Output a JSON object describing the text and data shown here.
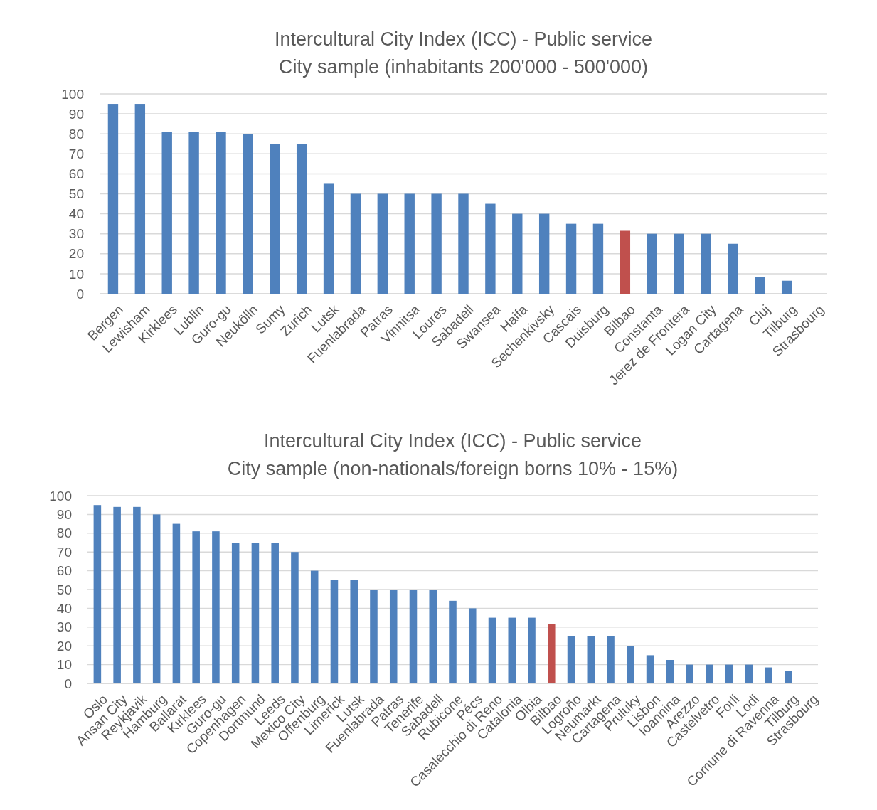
{
  "chart_data": [
    {
      "type": "bar",
      "title": "Intercultural City Index (ICC) - Public service",
      "subtitle": "City sample (inhabitants 200'000 - 500'000)",
      "categories": [
        "Bergen",
        "Lewisham",
        "Kirklees",
        "Lublin",
        "Guro-gu",
        "Neukölln",
        "Sumy",
        "Zurich",
        "Lutsk",
        "Fuenlabrada",
        "Patras",
        "Vinnitsa",
        "Loures",
        "Sabadell",
        "Swansea",
        "Haifa",
        "Sechenkivsky",
        "Cascais",
        "Duisburg",
        "Bilbao",
        "Constanta",
        "Jerez de Frontera",
        "Logan City",
        "Cartagena",
        "Cluj",
        "Tilburg",
        "Strasbourg"
      ],
      "values": [
        95,
        95,
        81,
        81,
        81,
        80,
        75,
        75,
        55,
        50,
        50,
        50,
        50,
        50,
        45,
        40,
        40,
        35,
        35,
        31.5,
        30,
        30,
        30,
        25,
        8.5,
        6.5,
        0
      ],
      "colors": [
        "#4f81bd",
        "#4f81bd",
        "#4f81bd",
        "#4f81bd",
        "#4f81bd",
        "#4f81bd",
        "#4f81bd",
        "#4f81bd",
        "#4f81bd",
        "#4f81bd",
        "#4f81bd",
        "#4f81bd",
        "#4f81bd",
        "#4f81bd",
        "#4f81bd",
        "#4f81bd",
        "#4f81bd",
        "#4f81bd",
        "#4f81bd",
        "#c0504d",
        "#4f81bd",
        "#4f81bd",
        "#4f81bd",
        "#4f81bd",
        "#4f81bd",
        "#4f81bd",
        "#4f81bd"
      ],
      "ylim": [
        0,
        100
      ],
      "yticks": [
        0,
        10,
        20,
        30,
        40,
        50,
        60,
        70,
        80,
        90,
        100
      ],
      "grid": "y"
    },
    {
      "type": "bar",
      "title": "Intercultural City Index (ICC) - Public service",
      "subtitle": "City sample (non-nationals/foreign borns 10% - 15%)",
      "categories": [
        "Oslo",
        "Ansan City",
        "Reykjavik",
        "Hamburg",
        "Ballarat",
        "Kirklees",
        "Guro-gu",
        "Copenhagen",
        "Dortmund",
        "Leeds",
        "Mexico City",
        "Offenburg",
        "Limerick",
        "Lutsk",
        "Fuenlabrada",
        "Patras",
        "Tenerife",
        "Sabadell",
        "Rubicone",
        "Pécs",
        "Casalecchio di Reno",
        "Catalonia",
        "Olbia",
        "Bilbao",
        "Logroño",
        "Neumarkt",
        "Cartagena",
        "Pruluky",
        "Lisbon",
        "Ioannina",
        "Arezzo",
        "Castelvetro",
        "Forli",
        "Lodi",
        "Comune di Ravenna",
        "Tilburg",
        "Strasbourg"
      ],
      "values": [
        95,
        94,
        94,
        90,
        85,
        81,
        81,
        75,
        75,
        75,
        70,
        60,
        55,
        55,
        50,
        50,
        50,
        50,
        44,
        40,
        35,
        35,
        35,
        31.5,
        25,
        25,
        25,
        20,
        15,
        12.5,
        10,
        10,
        10,
        10,
        8.5,
        6.5,
        0
      ],
      "colors": [
        "#4f81bd",
        "#4f81bd",
        "#4f81bd",
        "#4f81bd",
        "#4f81bd",
        "#4f81bd",
        "#4f81bd",
        "#4f81bd",
        "#4f81bd",
        "#4f81bd",
        "#4f81bd",
        "#4f81bd",
        "#4f81bd",
        "#4f81bd",
        "#4f81bd",
        "#4f81bd",
        "#4f81bd",
        "#4f81bd",
        "#4f81bd",
        "#4f81bd",
        "#4f81bd",
        "#4f81bd",
        "#4f81bd",
        "#c0504d",
        "#4f81bd",
        "#4f81bd",
        "#4f81bd",
        "#4f81bd",
        "#4f81bd",
        "#4f81bd",
        "#4f81bd",
        "#4f81bd",
        "#4f81bd",
        "#4f81bd",
        "#4f81bd",
        "#4f81bd",
        "#4f81bd"
      ],
      "ylim": [
        0,
        100
      ],
      "yticks": [
        0,
        10,
        20,
        30,
        40,
        50,
        60,
        70,
        80,
        90,
        100
      ],
      "grid": "y"
    }
  ]
}
